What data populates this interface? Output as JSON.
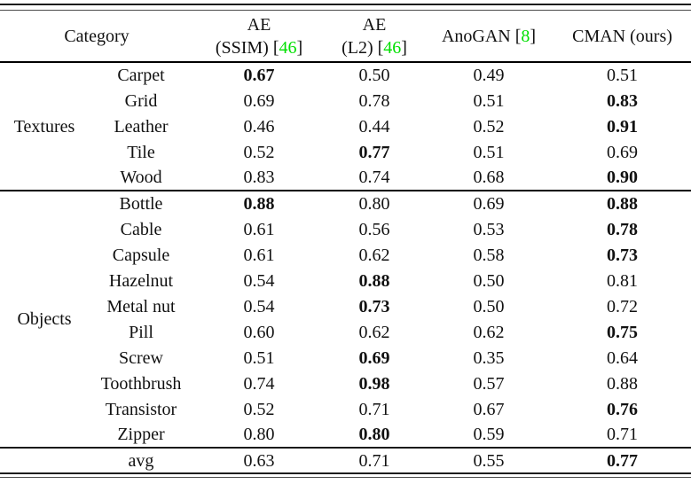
{
  "colors": {
    "citation": "#00e000",
    "text": "#111111",
    "rule": "#1d1d1d"
  },
  "table": {
    "header": {
      "category": "Category",
      "ae_ssim": {
        "top": "AE",
        "pre": "(SSIM) [",
        "cite": "46",
        "post": "]"
      },
      "ae_l2": {
        "top": "AE",
        "pre": "(L2) [",
        "cite": "46",
        "post": "]"
      },
      "anogan": {
        "pre": "AnoGAN [",
        "cite": "8",
        "post": "]"
      },
      "cman": "CMAN (ours)"
    },
    "sections": [
      {
        "label": "Textures",
        "rows": [
          {
            "name": "Carpet",
            "values": [
              {
                "v": "0.67",
                "bold": true
              },
              {
                "v": "0.50",
                "bold": false
              },
              {
                "v": "0.49",
                "bold": false
              },
              {
                "v": "0.51",
                "bold": false
              }
            ]
          },
          {
            "name": "Grid",
            "values": [
              {
                "v": "0.69",
                "bold": false
              },
              {
                "v": "0.78",
                "bold": false
              },
              {
                "v": "0.51",
                "bold": false
              },
              {
                "v": "0.83",
                "bold": true
              }
            ]
          },
          {
            "name": "Leather",
            "values": [
              {
                "v": "0.46",
                "bold": false
              },
              {
                "v": "0.44",
                "bold": false
              },
              {
                "v": "0.52",
                "bold": false
              },
              {
                "v": "0.91",
                "bold": true
              }
            ]
          },
          {
            "name": "Tile",
            "values": [
              {
                "v": "0.52",
                "bold": false
              },
              {
                "v": "0.77",
                "bold": true
              },
              {
                "v": "0.51",
                "bold": false
              },
              {
                "v": "0.69",
                "bold": false
              }
            ]
          },
          {
            "name": "Wood",
            "values": [
              {
                "v": "0.83",
                "bold": false
              },
              {
                "v": "0.74",
                "bold": false
              },
              {
                "v": "0.68",
                "bold": false
              },
              {
                "v": "0.90",
                "bold": true
              }
            ]
          }
        ]
      },
      {
        "label": "Objects",
        "rows": [
          {
            "name": "Bottle",
            "values": [
              {
                "v": "0.88",
                "bold": true
              },
              {
                "v": "0.80",
                "bold": false
              },
              {
                "v": "0.69",
                "bold": false
              },
              {
                "v": "0.88",
                "bold": true
              }
            ]
          },
          {
            "name": "Cable",
            "values": [
              {
                "v": "0.61",
                "bold": false
              },
              {
                "v": "0.56",
                "bold": false
              },
              {
                "v": "0.53",
                "bold": false
              },
              {
                "v": "0.78",
                "bold": true
              }
            ]
          },
          {
            "name": "Capsule",
            "values": [
              {
                "v": "0.61",
                "bold": false
              },
              {
                "v": "0.62",
                "bold": false
              },
              {
                "v": "0.58",
                "bold": false
              },
              {
                "v": "0.73",
                "bold": true
              }
            ]
          },
          {
            "name": "Hazelnut",
            "values": [
              {
                "v": "0.54",
                "bold": false
              },
              {
                "v": "0.88",
                "bold": true
              },
              {
                "v": "0.50",
                "bold": false
              },
              {
                "v": "0.81",
                "bold": false
              }
            ]
          },
          {
            "name": "Metal nut",
            "values": [
              {
                "v": "0.54",
                "bold": false
              },
              {
                "v": "0.73",
                "bold": true
              },
              {
                "v": "0.50",
                "bold": false
              },
              {
                "v": "0.72",
                "bold": false
              }
            ]
          },
          {
            "name": "Pill",
            "values": [
              {
                "v": "0.60",
                "bold": false
              },
              {
                "v": "0.62",
                "bold": false
              },
              {
                "v": "0.62",
                "bold": false
              },
              {
                "v": "0.75",
                "bold": true
              }
            ]
          },
          {
            "name": "Screw",
            "values": [
              {
                "v": "0.51",
                "bold": false
              },
              {
                "v": "0.69",
                "bold": true
              },
              {
                "v": "0.35",
                "bold": false
              },
              {
                "v": "0.64",
                "bold": false
              }
            ]
          },
          {
            "name": "Toothbrush",
            "values": [
              {
                "v": "0.74",
                "bold": false
              },
              {
                "v": "0.98",
                "bold": true
              },
              {
                "v": "0.57",
                "bold": false
              },
              {
                "v": "0.88",
                "bold": false
              }
            ]
          },
          {
            "name": "Transistor",
            "values": [
              {
                "v": "0.52",
                "bold": false
              },
              {
                "v": "0.71",
                "bold": false
              },
              {
                "v": "0.67",
                "bold": false
              },
              {
                "v": "0.76",
                "bold": true
              }
            ]
          },
          {
            "name": "Zipper",
            "values": [
              {
                "v": "0.80",
                "bold": false
              },
              {
                "v": "0.80",
                "bold": true
              },
              {
                "v": "0.59",
                "bold": false
              },
              {
                "v": "0.71",
                "bold": false
              }
            ]
          }
        ]
      }
    ],
    "footer": {
      "label": "avg",
      "values": [
        {
          "v": "0.63",
          "bold": false
        },
        {
          "v": "0.71",
          "bold": false
        },
        {
          "v": "0.55",
          "bold": false
        },
        {
          "v": "0.77",
          "bold": true
        }
      ]
    }
  }
}
